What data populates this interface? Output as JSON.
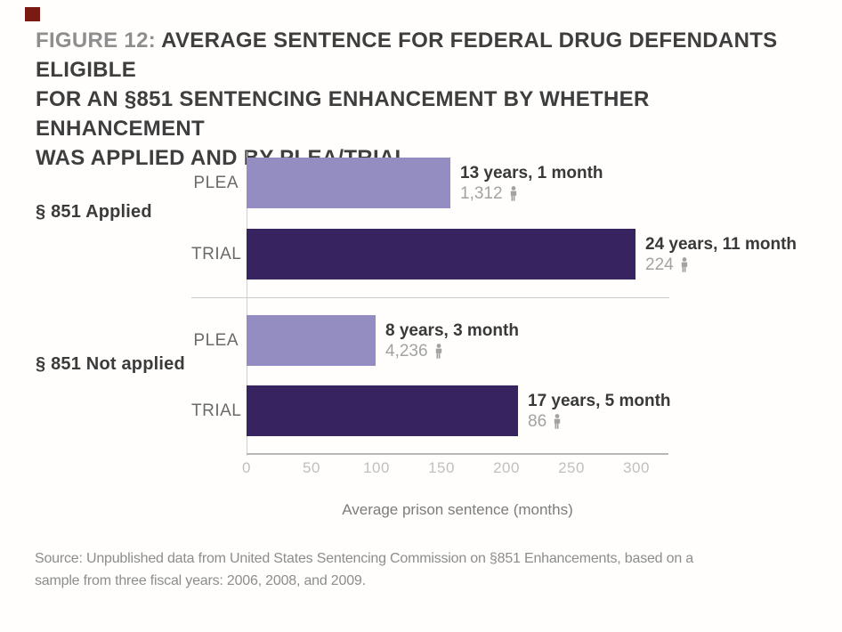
{
  "figure": {
    "title_prefix": "FIGURE 12: ",
    "title_lines": [
      "AVERAGE SENTENCE FOR FEDERAL DRUG DEFENDANTS ELIGIBLE",
      "FOR AN §851 SENTENCING ENHANCEMENT BY WHETHER ENHANCEMENT",
      "WAS APPLIED AND BY PLEA/TRIAL"
    ],
    "source_lines": [
      "Source: Unpublished data from United States Sentencing Commission on §851 Enhancements, based on a",
      "sample from three fiscal years: 2006, 2008, and 2009."
    ]
  },
  "chart_data": {
    "type": "bar",
    "orientation": "horizontal",
    "title": "FIGURE 12: AVERAGE SENTENCE FOR FEDERAL DRUG DEFENDANTS ELIGIBLE FOR AN §851 SENTENCING ENHANCEMENT BY WHETHER ENHANCEMENT WAS APPLIED AND BY PLEA/TRIAL",
    "xlabel": "Average prison sentence (months)",
    "axis": {
      "ticks": [
        0,
        50,
        100,
        150,
        200,
        250,
        300
      ],
      "xlim": [
        0,
        325
      ],
      "grid": false
    },
    "group_labels": [
      "§ 851 Applied",
      "§ 851 Not applied"
    ],
    "rows": [
      {
        "group": "§ 851 Applied",
        "category": "PLEA",
        "months": 157,
        "sentence_label": "13 years, 1 month",
        "defendant_count": "1,312",
        "shade": "light"
      },
      {
        "group": "§ 851 Applied",
        "category": "TRIAL",
        "months": 299,
        "sentence_label": "24 years, 11 month",
        "defendant_count": "224",
        "shade": "dark"
      },
      {
        "group": "§ 851 Not applied",
        "category": "PLEA",
        "months": 99,
        "sentence_label": "8 years, 3 month",
        "defendant_count": "4,236",
        "shade": "light"
      },
      {
        "group": "§ 851 Not applied",
        "category": "TRIAL",
        "months": 209,
        "sentence_label": "17 years, 5 month",
        "defendant_count": "86",
        "shade": "dark"
      }
    ],
    "colors": {
      "bar_light": "#948DC2",
      "bar_dark": "#36235F",
      "accent_square": "#7B1A13",
      "count_gray": "#A2A2A2"
    }
  }
}
